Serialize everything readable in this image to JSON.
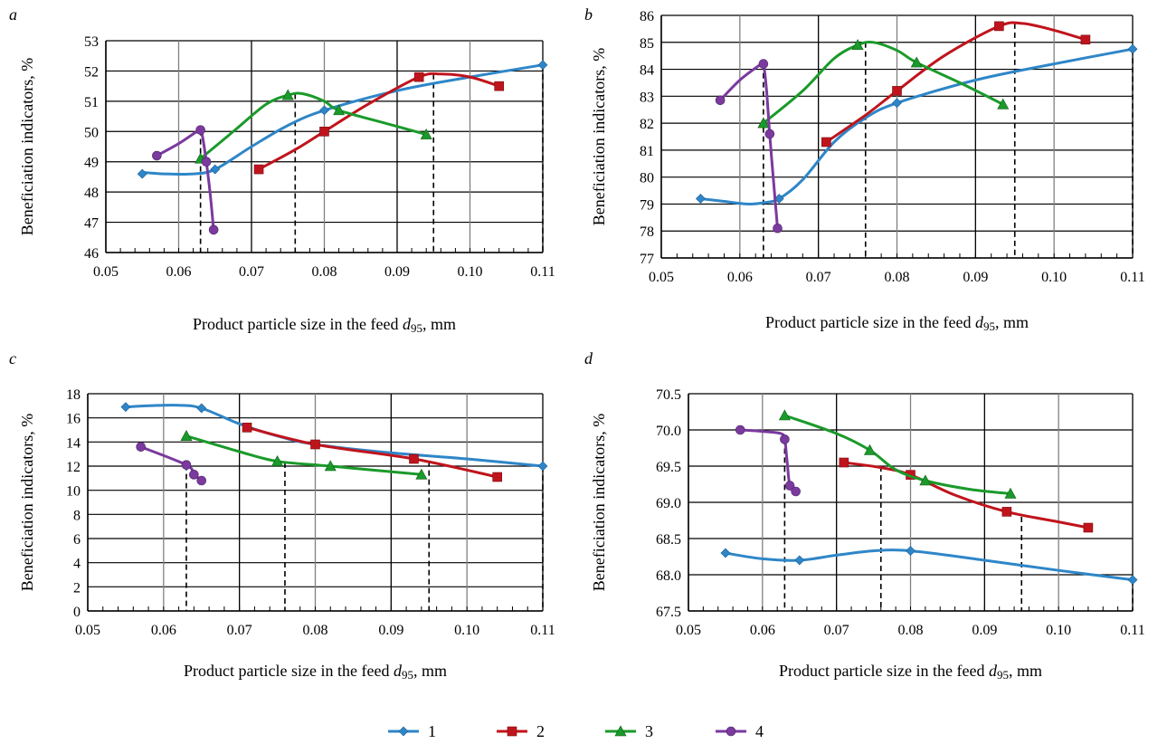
{
  "figure": {
    "legend": [
      {
        "label": "1",
        "color": "#2e86c8",
        "marker": "diamond"
      },
      {
        "label": "2",
        "color": "#c0141c",
        "marker": "square"
      },
      {
        "label": "3",
        "color": "#1a9a2a",
        "marker": "triangle"
      },
      {
        "label": "4",
        "color": "#7a3a9e",
        "marker": "circle"
      }
    ]
  },
  "chart_data": [
    {
      "panel": "a",
      "type": "line",
      "xlabel": "Product particle size in the feed d95, mm",
      "ylabel": "Beneficiation indicators, %",
      "xlim": [
        0.05,
        0.11
      ],
      "ylim": [
        46,
        53
      ],
      "xticks": [
        "0.05",
        "0.06",
        "0.07",
        "0.08",
        "0.09",
        "0.10",
        "0.11"
      ],
      "yticks": [
        "46",
        "47",
        "48",
        "49",
        "50",
        "51",
        "52",
        "53"
      ],
      "grid": true,
      "dashed_lines_x": [
        0.063,
        0.076,
        0.095,
        0.11
      ],
      "series": [
        {
          "name": "1",
          "x": [
            0.055,
            0.065,
            0.08,
            0.11
          ],
          "y": [
            48.6,
            48.75,
            50.7,
            52.2
          ],
          "curve": [
            [
              0.055,
              48.65
            ],
            [
              0.058,
              48.6
            ],
            [
              0.062,
              48.6
            ],
            [
              0.065,
              48.75
            ],
            [
              0.07,
              49.5
            ],
            [
              0.075,
              50.2
            ],
            [
              0.08,
              50.7
            ],
            [
              0.09,
              51.35
            ],
            [
              0.1,
              51.8
            ],
            [
              0.11,
              52.2
            ]
          ]
        },
        {
          "name": "2",
          "x": [
            0.071,
            0.08,
            0.093,
            0.104
          ],
          "y": [
            48.75,
            50.0,
            51.8,
            51.5
          ],
          "curve": [
            [
              0.071,
              48.75
            ],
            [
              0.076,
              49.4
            ],
            [
              0.08,
              50.0
            ],
            [
              0.086,
              50.9
            ],
            [
              0.093,
              51.8
            ],
            [
              0.096,
              51.9
            ],
            [
              0.1,
              51.8
            ],
            [
              0.104,
              51.5
            ]
          ]
        },
        {
          "name": "3",
          "x": [
            0.063,
            0.075,
            0.082,
            0.094
          ],
          "y": [
            49.1,
            51.2,
            50.7,
            49.9
          ],
          "curve": [
            [
              0.063,
              49.1
            ],
            [
              0.068,
              50.1
            ],
            [
              0.072,
              50.9
            ],
            [
              0.075,
              51.2
            ],
            [
              0.077,
              51.25
            ],
            [
              0.08,
              51.0
            ],
            [
              0.082,
              50.7
            ],
            [
              0.088,
              50.3
            ],
            [
              0.094,
              49.9
            ]
          ]
        },
        {
          "name": "4",
          "x": [
            0.057,
            0.063,
            0.0638,
            0.0648
          ],
          "y": [
            49.2,
            50.05,
            49.0,
            46.75
          ],
          "curve": [
            [
              0.057,
              49.2
            ],
            [
              0.06,
              49.6
            ],
            [
              0.0625,
              50.0
            ],
            [
              0.063,
              50.05
            ],
            [
              0.0633,
              49.8
            ],
            [
              0.0638,
              49.0
            ],
            [
              0.0643,
              48.0
            ],
            [
              0.0648,
              46.75
            ]
          ]
        }
      ]
    },
    {
      "panel": "b",
      "type": "line",
      "xlabel": "Product particle size in the feed d95, mm",
      "ylabel": "Beneficiation indicators, %",
      "xlim": [
        0.05,
        0.11
      ],
      "ylim": [
        77,
        86
      ],
      "xticks": [
        "0.05",
        "0.06",
        "0.07",
        "0.08",
        "0.09",
        "0.10",
        "0.11"
      ],
      "yticks": [
        "77",
        "78",
        "79",
        "80",
        "81",
        "82",
        "83",
        "84",
        "85",
        "86"
      ],
      "grid": true,
      "dashed_lines_x": [
        0.063,
        0.076,
        0.095,
        0.11
      ],
      "series": [
        {
          "name": "1",
          "x": [
            0.055,
            0.065,
            0.08,
            0.11
          ],
          "y": [
            79.2,
            79.2,
            82.75,
            84.75
          ],
          "curve": [
            [
              0.055,
              79.2
            ],
            [
              0.058,
              79.1
            ],
            [
              0.061,
              79.0
            ],
            [
              0.063,
              79.05
            ],
            [
              0.065,
              79.2
            ],
            [
              0.068,
              79.9
            ],
            [
              0.072,
              81.3
            ],
            [
              0.076,
              82.2
            ],
            [
              0.08,
              82.75
            ],
            [
              0.09,
              83.6
            ],
            [
              0.1,
              84.2
            ],
            [
              0.11,
              84.75
            ]
          ]
        },
        {
          "name": "2",
          "x": [
            0.071,
            0.08,
            0.093,
            0.104
          ],
          "y": [
            81.3,
            83.2,
            85.6,
            85.1
          ],
          "curve": [
            [
              0.071,
              81.3
            ],
            [
              0.076,
              82.3
            ],
            [
              0.08,
              83.2
            ],
            [
              0.086,
              84.5
            ],
            [
              0.093,
              85.6
            ],
            [
              0.096,
              85.7
            ],
            [
              0.1,
              85.45
            ],
            [
              0.104,
              85.1
            ]
          ]
        },
        {
          "name": "3",
          "x": [
            0.063,
            0.075,
            0.0825,
            0.0935
          ],
          "y": [
            82.0,
            84.9,
            84.25,
            82.7
          ],
          "curve": [
            [
              0.063,
              82.0
            ],
            [
              0.068,
              83.2
            ],
            [
              0.072,
              84.4
            ],
            [
              0.075,
              84.9
            ],
            [
              0.077,
              85.0
            ],
            [
              0.08,
              84.7
            ],
            [
              0.0825,
              84.25
            ],
            [
              0.088,
              83.5
            ],
            [
              0.0935,
              82.7
            ]
          ]
        },
        {
          "name": "4",
          "x": [
            0.0575,
            0.063,
            0.0638,
            0.0648
          ],
          "y": [
            82.85,
            84.2,
            81.6,
            78.1
          ],
          "curve": [
            [
              0.0575,
              82.85
            ],
            [
              0.06,
              83.6
            ],
            [
              0.0625,
              84.15
            ],
            [
              0.063,
              84.2
            ],
            [
              0.0634,
              83.2
            ],
            [
              0.0638,
              81.6
            ],
            [
              0.0643,
              79.8
            ],
            [
              0.0648,
              78.1
            ]
          ]
        }
      ]
    },
    {
      "panel": "c",
      "type": "line",
      "xlabel": "Product particle size in the feed d95, mm",
      "ylabel": "Beneficiation indicators, %",
      "xlim": [
        0.05,
        0.11
      ],
      "ylim": [
        0,
        18
      ],
      "xticks": [
        "0.05",
        "0.06",
        "0.07",
        "0.08",
        "0.09",
        "0.10",
        "0.11"
      ],
      "yticks": [
        "0",
        "2",
        "4",
        "6",
        "8",
        "10",
        "12",
        "14",
        "16",
        "18"
      ],
      "grid": true,
      "dashed_lines_x": [
        0.063,
        0.076,
        0.095,
        0.11
      ],
      "series": [
        {
          "name": "1",
          "x": [
            0.055,
            0.065,
            0.08,
            0.11
          ],
          "y": [
            16.9,
            16.8,
            13.8,
            12.0
          ],
          "curve": [
            [
              0.055,
              16.9
            ],
            [
              0.058,
              17.0
            ],
            [
              0.062,
              17.05
            ],
            [
              0.065,
              16.8
            ],
            [
              0.07,
              15.5
            ],
            [
              0.075,
              14.5
            ],
            [
              0.08,
              13.8
            ],
            [
              0.09,
              13.1
            ],
            [
              0.1,
              12.6
            ],
            [
              0.11,
              12.0
            ]
          ]
        },
        {
          "name": "2",
          "x": [
            0.071,
            0.08,
            0.093,
            0.104
          ],
          "y": [
            15.2,
            13.8,
            12.6,
            11.1
          ],
          "curve": [
            [
              0.071,
              15.2
            ],
            [
              0.08,
              13.8
            ],
            [
              0.093,
              12.6
            ],
            [
              0.104,
              11.1
            ]
          ]
        },
        {
          "name": "3",
          "x": [
            0.063,
            0.075,
            0.082,
            0.094
          ],
          "y": [
            14.5,
            12.4,
            12.0,
            11.3
          ],
          "curve": [
            [
              0.063,
              14.5
            ],
            [
              0.07,
              13.2
            ],
            [
              0.075,
              12.4
            ],
            [
              0.082,
              12.0
            ],
            [
              0.094,
              11.3
            ]
          ]
        },
        {
          "name": "4",
          "x": [
            0.057,
            0.063,
            0.064,
            0.065
          ],
          "y": [
            13.6,
            12.1,
            11.3,
            10.8
          ],
          "curve": [
            [
              0.057,
              13.6
            ],
            [
              0.063,
              12.1
            ],
            [
              0.064,
              11.3
            ],
            [
              0.065,
              10.8
            ]
          ]
        }
      ]
    },
    {
      "panel": "d",
      "type": "line",
      "xlabel": "Product particle size in the feed d95, mm",
      "ylabel": "Beneficiation indicators, %",
      "xlim": [
        0.05,
        0.11
      ],
      "ylim": [
        67.5,
        70.5
      ],
      "xticks": [
        "0.05",
        "0.06",
        "0.07",
        "0.08",
        "0.09",
        "0.10",
        "0.11"
      ],
      "yticks": [
        "67.5",
        "68.0",
        "68.5",
        "69.0",
        "69.5",
        "70.0",
        "70.5"
      ],
      "grid": true,
      "dashed_lines_x": [
        0.063,
        0.076,
        0.095,
        0.11
      ],
      "series": [
        {
          "name": "1",
          "x": [
            0.055,
            0.065,
            0.08,
            0.11
          ],
          "y": [
            68.3,
            68.2,
            68.33,
            67.93
          ],
          "curve": [
            [
              0.055,
              68.3
            ],
            [
              0.06,
              68.22
            ],
            [
              0.065,
              68.2
            ],
            [
              0.07,
              68.27
            ],
            [
              0.075,
              68.33
            ],
            [
              0.08,
              68.33
            ],
            [
              0.09,
              68.2
            ],
            [
              0.1,
              68.06
            ],
            [
              0.11,
              67.93
            ]
          ]
        },
        {
          "name": "2",
          "x": [
            0.071,
            0.08,
            0.093,
            0.104
          ],
          "y": [
            69.55,
            69.38,
            68.87,
            68.65
          ],
          "curve": [
            [
              0.071,
              69.55
            ],
            [
              0.076,
              69.48
            ],
            [
              0.08,
              69.38
            ],
            [
              0.086,
              69.1
            ],
            [
              0.093,
              68.87
            ],
            [
              0.1,
              68.73
            ],
            [
              0.104,
              68.65
            ]
          ]
        },
        {
          "name": "3",
          "x": [
            0.063,
            0.0745,
            0.082,
            0.0935
          ],
          "y": [
            70.2,
            69.72,
            69.3,
            69.12
          ],
          "curve": [
            [
              0.063,
              70.2
            ],
            [
              0.07,
              69.95
            ],
            [
              0.0745,
              69.72
            ],
            [
              0.078,
              69.45
            ],
            [
              0.082,
              69.3
            ],
            [
              0.088,
              69.18
            ],
            [
              0.0935,
              69.12
            ]
          ]
        },
        {
          "name": "4",
          "x": [
            0.057,
            0.063,
            0.0637,
            0.0645
          ],
          "y": [
            70.0,
            69.87,
            69.23,
            69.15
          ],
          "curve": [
            [
              0.057,
              70.0
            ],
            [
              0.06,
              69.98
            ],
            [
              0.0625,
              69.95
            ],
            [
              0.063,
              69.87
            ],
            [
              0.0633,
              69.6
            ],
            [
              0.0637,
              69.23
            ],
            [
              0.0645,
              69.15
            ]
          ]
        }
      ]
    }
  ]
}
